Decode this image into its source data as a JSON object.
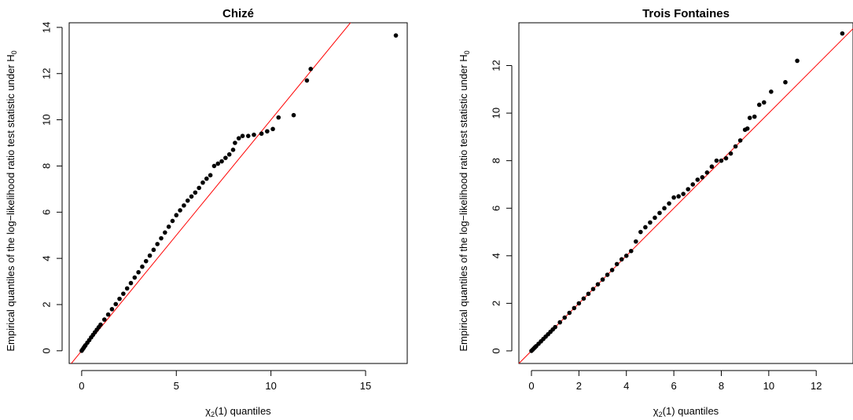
{
  "chart_data": [
    {
      "type": "scatter",
      "title": "Chizé",
      "xlabel_prefix": "χ",
      "xlabel_subscript": "2",
      "xlabel_suffix": "(1) quantiles",
      "ylabel_prefix": "Empirical quantiles of the log−likelihood ratio test statistic under H",
      "ylabel_subscript": "0",
      "xlim": [
        -0.66,
        17.2
      ],
      "ylim": [
        -0.55,
        14.2
      ],
      "xticks": [
        0,
        5,
        10,
        15
      ],
      "yticks": [
        0,
        2,
        4,
        6,
        8,
        10,
        12,
        14
      ],
      "reference_line": {
        "slope": 1,
        "intercept": 0,
        "color": "#ff0000"
      },
      "point_color": "#000000",
      "grid": false,
      "x": [
        0.0,
        0.05,
        0.1,
        0.15,
        0.2,
        0.3,
        0.4,
        0.5,
        0.6,
        0.7,
        0.8,
        0.9,
        1.0,
        1.2,
        1.4,
        1.6,
        1.8,
        2.0,
        2.2,
        2.4,
        2.6,
        2.8,
        3.0,
        3.2,
        3.4,
        3.6,
        3.8,
        4.0,
        4.2,
        4.4,
        4.6,
        4.8,
        5.0,
        5.2,
        5.4,
        5.6,
        5.8,
        6.0,
        6.2,
        6.4,
        6.6,
        6.8,
        7.0,
        7.2,
        7.4,
        7.6,
        7.8,
        8.0,
        8.1,
        8.3,
        8.5,
        8.8,
        9.1,
        9.5,
        9.8,
        10.1,
        10.4,
        11.2,
        11.9,
        12.1,
        16.6
      ],
      "y": [
        0.0,
        0.06,
        0.12,
        0.18,
        0.24,
        0.35,
        0.46,
        0.58,
        0.69,
        0.8,
        0.91,
        1.02,
        1.13,
        1.35,
        1.57,
        1.8,
        2.02,
        2.25,
        2.47,
        2.7,
        2.93,
        3.17,
        3.4,
        3.64,
        3.88,
        4.12,
        4.37,
        4.62,
        4.87,
        5.12,
        5.37,
        5.62,
        5.87,
        6.08,
        6.29,
        6.5,
        6.68,
        6.85,
        7.05,
        7.28,
        7.45,
        7.6,
        8.0,
        8.1,
        8.2,
        8.35,
        8.5,
        8.7,
        9.0,
        9.2,
        9.3,
        9.3,
        9.35,
        9.4,
        9.5,
        9.6,
        10.1,
        10.2,
        11.7,
        12.2,
        13.65
      ]
    },
    {
      "type": "scatter",
      "title": "Trois Fontaines",
      "xlabel_prefix": "χ",
      "xlabel_subscript": "2",
      "xlabel_suffix": "(1) quantiles",
      "ylabel_prefix": "Empirical quantiles of the log−likelihood ratio test statistic under H",
      "ylabel_subscript": "0",
      "xlim": [
        -0.53,
        13.55
      ],
      "ylim": [
        -0.53,
        13.8
      ],
      "xticks": [
        0,
        2,
        4,
        6,
        8,
        10,
        12
      ],
      "yticks": [
        0,
        2,
        4,
        6,
        8,
        10,
        12
      ],
      "reference_line": {
        "slope": 1,
        "intercept": 0,
        "color": "#ff0000"
      },
      "point_color": "#000000",
      "grid": false,
      "x": [
        0.0,
        0.05,
        0.1,
        0.15,
        0.2,
        0.3,
        0.4,
        0.5,
        0.6,
        0.7,
        0.8,
        0.9,
        1.0,
        1.2,
        1.4,
        1.6,
        1.8,
        2.0,
        2.2,
        2.4,
        2.6,
        2.8,
        3.0,
        3.2,
        3.4,
        3.6,
        3.8,
        4.0,
        4.2,
        4.4,
        4.6,
        4.8,
        5.0,
        5.2,
        5.4,
        5.6,
        5.8,
        6.0,
        6.2,
        6.4,
        6.6,
        6.8,
        7.0,
        7.2,
        7.4,
        7.6,
        7.8,
        8.0,
        8.2,
        8.4,
        8.6,
        8.8,
        9.0,
        9.1,
        9.2,
        9.4,
        9.6,
        9.8,
        10.1,
        10.7,
        11.2,
        13.1
      ],
      "y": [
        0.0,
        0.05,
        0.1,
        0.15,
        0.2,
        0.3,
        0.4,
        0.5,
        0.6,
        0.7,
        0.8,
        0.9,
        1.0,
        1.2,
        1.4,
        1.6,
        1.8,
        2.0,
        2.2,
        2.4,
        2.6,
        2.8,
        3.0,
        3.2,
        3.4,
        3.65,
        3.85,
        4.0,
        4.2,
        4.6,
        5.0,
        5.2,
        5.4,
        5.6,
        5.8,
        6.0,
        6.2,
        6.45,
        6.5,
        6.6,
        6.8,
        7.0,
        7.2,
        7.3,
        7.5,
        7.75,
        8.0,
        8.0,
        8.1,
        8.3,
        8.6,
        8.85,
        9.3,
        9.35,
        9.8,
        9.85,
        10.35,
        10.45,
        10.9,
        11.3,
        12.2,
        13.35
      ]
    }
  ]
}
